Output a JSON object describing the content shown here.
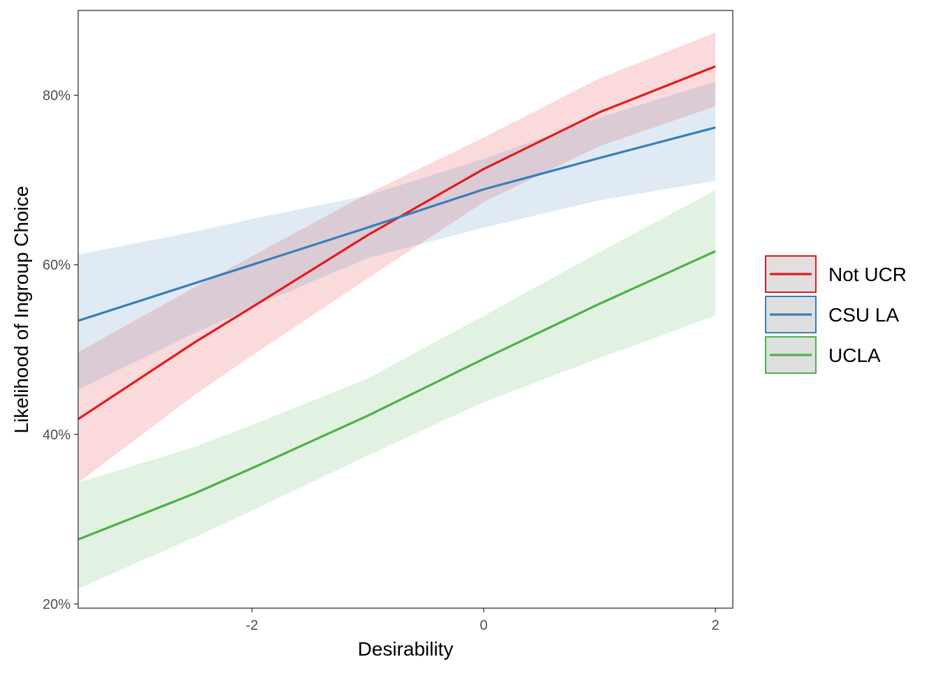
{
  "chart_data": {
    "type": "line",
    "title": "",
    "xlabel": "Desirability",
    "ylabel": "Likelihood of Ingroup Choice",
    "xlim": [
      -3.5,
      2.15
    ],
    "ylim": [
      19.5,
      90
    ],
    "x_ticks": [
      -2,
      0,
      2
    ],
    "x_tick_labels": [
      "-2",
      "0",
      "2"
    ],
    "y_ticks": [
      20,
      40,
      60,
      80
    ],
    "y_tick_labels": [
      "20%",
      "40%",
      "60%",
      "80%"
    ],
    "grid": false,
    "legend_position": "right",
    "series": [
      {
        "name": "Not UCR",
        "color": "#e41a1c",
        "x": [
          -3.5,
          -2.5,
          -2,
          -1,
          0,
          1,
          2
        ],
        "y": [
          41.8,
          50.8,
          55.0,
          63.5,
          71.3,
          78.0,
          83.4
        ],
        "lower": [
          34.3,
          44.6,
          49.3,
          58.4,
          67.4,
          74.0,
          78.7
        ],
        "upper": [
          49.7,
          57.3,
          61.0,
          68.4,
          75.0,
          82.0,
          87.4
        ]
      },
      {
        "name": "CSU LA",
        "color": "#377eb8",
        "x": [
          -3.5,
          -2.5,
          -2,
          -1,
          0,
          1,
          2
        ],
        "y": [
          53.4,
          57.8,
          60.0,
          64.4,
          68.9,
          72.6,
          76.2
        ],
        "lower": [
          45.3,
          51.9,
          55.0,
          60.8,
          64.4,
          67.6,
          69.9
        ],
        "upper": [
          61.2,
          63.9,
          65.4,
          68.2,
          72.5,
          77.4,
          81.6
        ]
      },
      {
        "name": "UCLA",
        "color": "#4daf4a",
        "x": [
          -3.5,
          -2.5,
          -2,
          -1,
          0,
          1,
          2
        ],
        "y": [
          27.6,
          33.0,
          36.0,
          42.2,
          48.9,
          55.4,
          61.6
        ],
        "lower": [
          21.8,
          27.8,
          31.0,
          37.5,
          43.8,
          49.0,
          54.0
        ],
        "upper": [
          34.3,
          38.5,
          41.1,
          46.6,
          54.0,
          61.5,
          68.8
        ]
      }
    ]
  }
}
